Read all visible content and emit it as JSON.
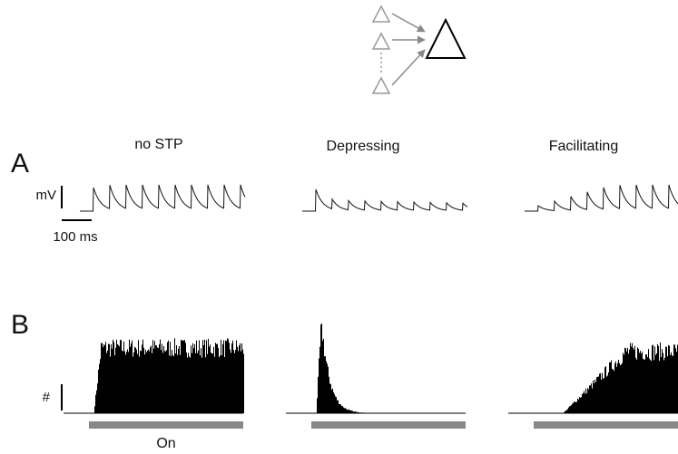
{
  "panel_a": {
    "label": "A",
    "titles": [
      "no STP",
      "Depressing",
      "Facilitating"
    ],
    "y_scale": "mV",
    "x_scale": "100 ms"
  },
  "panel_b": {
    "label": "B",
    "y_scale": "#",
    "stimulus": "On"
  }
}
